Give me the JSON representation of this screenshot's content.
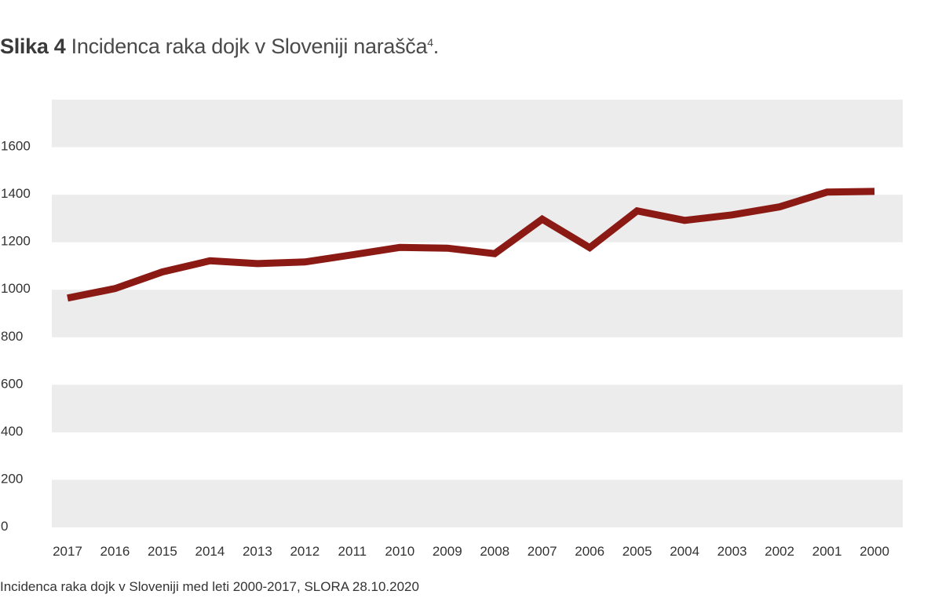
{
  "figure": {
    "prefix": "Slika 4",
    "title": "Incidenca raka dojk v Sloveniji narašča",
    "footnote_marker": "4",
    "title_end": ".",
    "caption": "Incidenca raka dojk v Sloveniji med leti 2000-2017, SLORA 28.10.2020"
  },
  "chart_data": {
    "type": "line",
    "title": "Incidenca raka dojk v Sloveniji narašča",
    "xlabel": "",
    "ylabel": "",
    "categories": [
      "2017",
      "2016",
      "2015",
      "2014",
      "2013",
      "2012",
      "2011",
      "2010",
      "2009",
      "2008",
      "2007",
      "2006",
      "2005",
      "2004",
      "2003",
      "2002",
      "2001",
      "2000"
    ],
    "series": [
      {
        "values": [
          965,
          1005,
          1075,
          1122,
          1110,
          1117,
          1147,
          1178,
          1175,
          1152,
          1297,
          1177,
          1332,
          1292,
          1315,
          1349,
          1411,
          1414
        ]
      }
    ],
    "ylim": [
      0,
      1800
    ],
    "yticks": [
      0,
      200,
      400,
      600,
      800,
      1000,
      1200,
      1400,
      1600
    ],
    "grid": "alternating horizontal bands",
    "legend": "none",
    "colors": {
      "line": "#8b1a14",
      "band": "#ececec",
      "axis_text": "#333333"
    }
  }
}
